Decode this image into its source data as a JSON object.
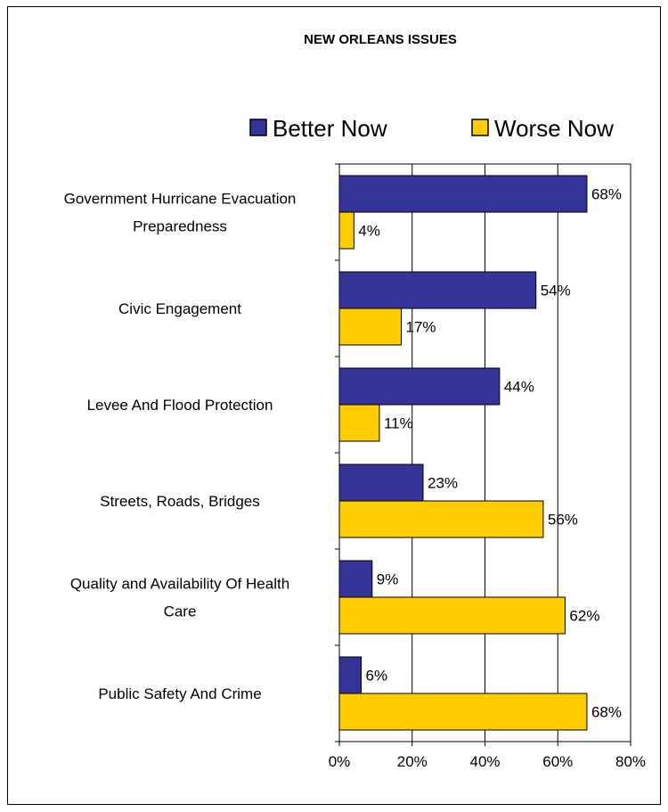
{
  "chart_data": {
    "type": "bar",
    "orientation": "horizontal",
    "title": "NEW ORLEANS ISSUES",
    "categories": [
      [
        "Government Hurricane Evacuation",
        "Preparedness"
      ],
      [
        "Civic Engagement"
      ],
      [
        "Levee And Flood Protection"
      ],
      [
        "Streets, Roads, Bridges"
      ],
      [
        "Quality and Availability Of Health",
        "Care"
      ],
      [
        "Public Safety And Crime"
      ]
    ],
    "series": [
      {
        "name": "Better Now",
        "color": "#333399",
        "values": [
          68,
          54,
          44,
          23,
          9,
          6
        ],
        "labels": [
          "68%",
          "54%",
          "44%",
          "23%",
          "9%",
          "6%"
        ]
      },
      {
        "name": "Worse Now",
        "color": "#FFCC00",
        "values": [
          4,
          17,
          11,
          56,
          62,
          68
        ],
        "labels": [
          "4%",
          "17%",
          "11%",
          "56%",
          "62%",
          "68%"
        ]
      }
    ],
    "xlim": [
      0,
      80
    ],
    "xticks": [
      0,
      20,
      40,
      60,
      80
    ],
    "xtick_labels": [
      "0%",
      "20%",
      "40%",
      "60%",
      "80%"
    ],
    "grid": "vertical",
    "legend_position": "top"
  }
}
